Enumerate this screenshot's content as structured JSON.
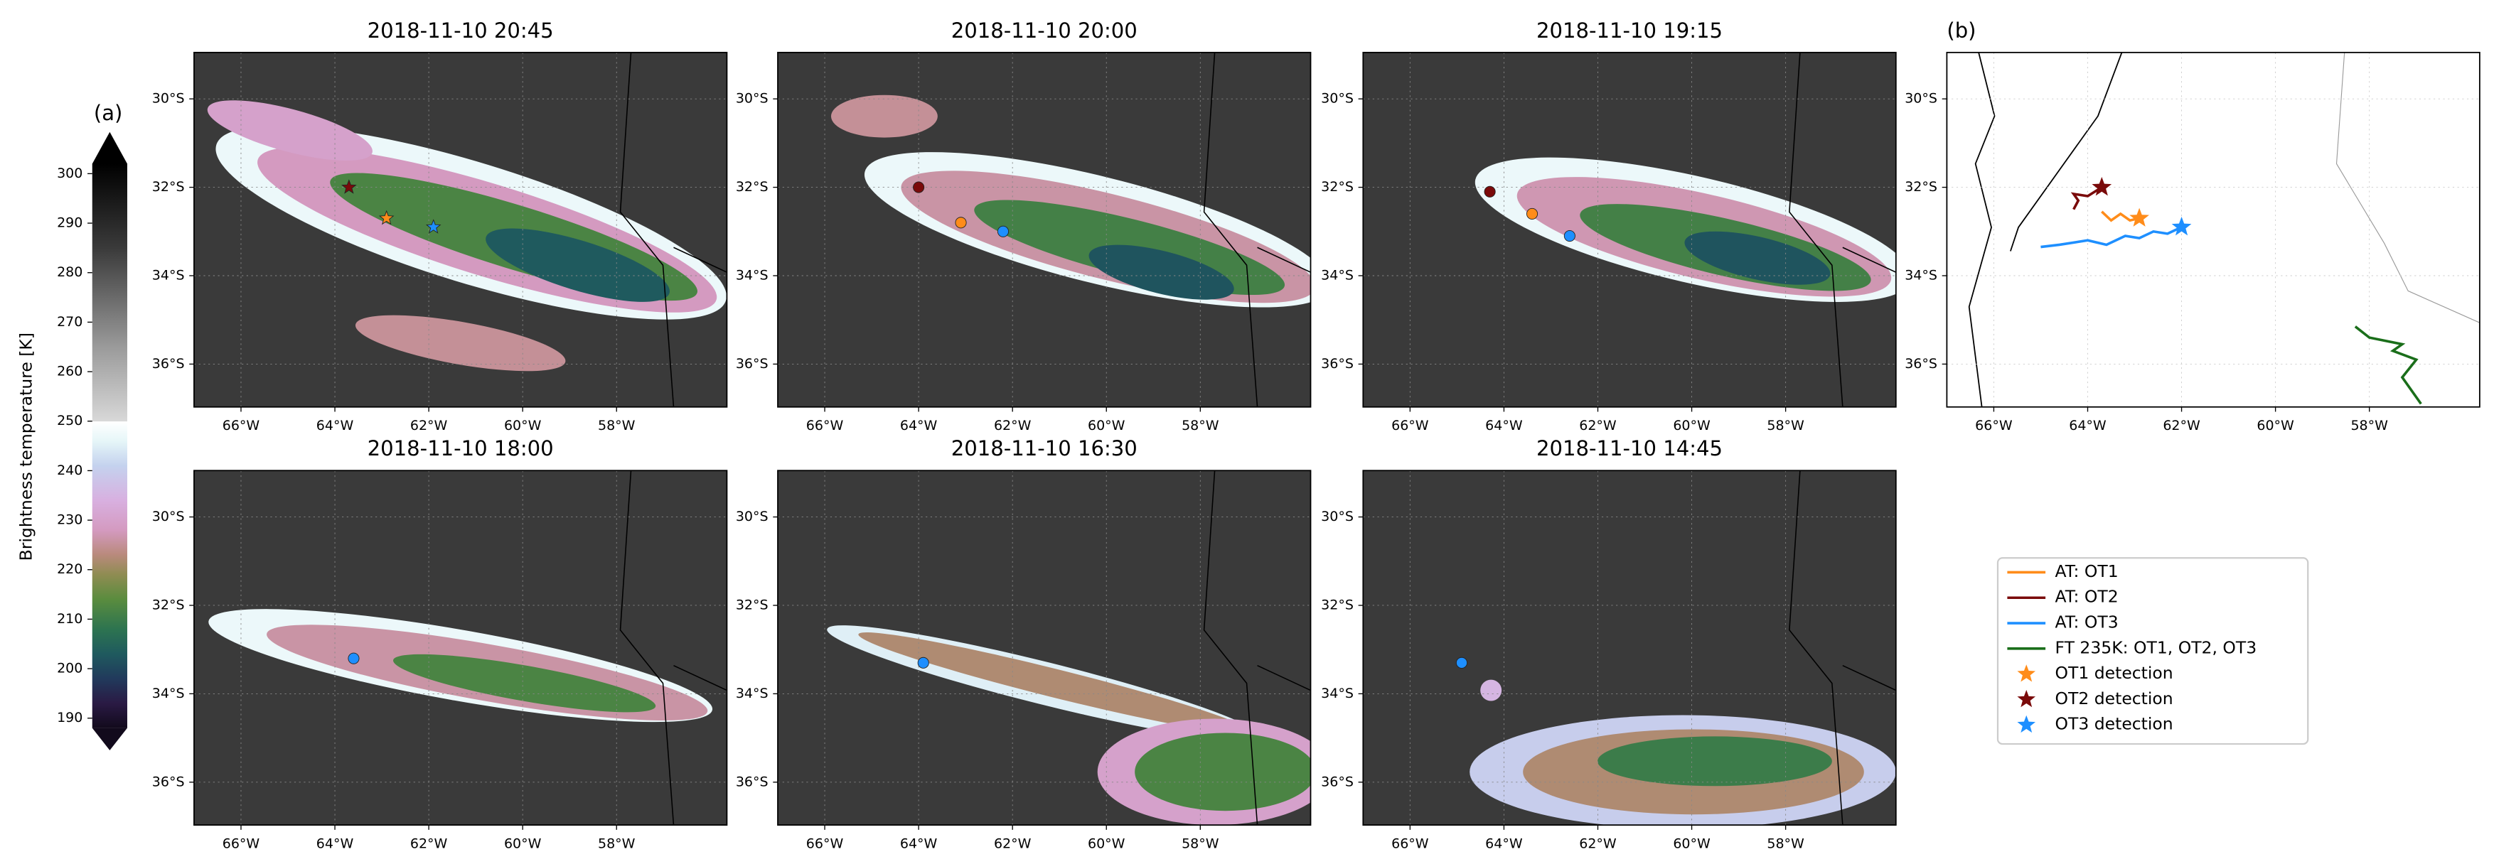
{
  "colorbar": {
    "label": "Brightness temperature [K]",
    "panel_label": "(a)",
    "lim": [
      188,
      302
    ],
    "ticks": [
      190,
      200,
      210,
      220,
      230,
      240,
      250,
      260,
      270,
      280,
      290,
      300
    ],
    "colormap": [
      [
        188,
        "#120a1c"
      ],
      [
        193,
        "#2a1a44"
      ],
      [
        198,
        "#213a5c"
      ],
      [
        203,
        "#1f5a5e"
      ],
      [
        208,
        "#2d7450"
      ],
      [
        214,
        "#5a8c3e"
      ],
      [
        219,
        "#8f8c52"
      ],
      [
        223,
        "#b98a7c"
      ],
      [
        228,
        "#d49ac0"
      ],
      [
        234,
        "#d8b0e0"
      ],
      [
        241,
        "#c4d2ee"
      ],
      [
        246,
        "#e6f6f8"
      ],
      [
        249.9,
        "#ffffff"
      ],
      [
        250,
        "#d8d8d8"
      ],
      [
        265,
        "#9a9a9a"
      ],
      [
        285,
        "#3a3a3a"
      ],
      [
        302,
        "#000000"
      ]
    ]
  },
  "map_axes": {
    "xlim": [
      -67.0,
      -55.65
    ],
    "ylim": [
      -36.97,
      -28.95
    ],
    "xticks": [
      {
        "value": -66,
        "label": "66°W"
      },
      {
        "value": -64,
        "label": "64°W"
      },
      {
        "value": -62,
        "label": "62°W"
      },
      {
        "value": -60,
        "label": "60°W"
      },
      {
        "value": -58,
        "label": "58°W"
      }
    ],
    "yticks": [
      {
        "value": -30,
        "label": "30°S"
      },
      {
        "value": -32,
        "label": "32°S"
      },
      {
        "value": -34,
        "label": "34°S"
      },
      {
        "value": -36,
        "label": "36°S"
      }
    ],
    "grid": true
  },
  "panels": [
    {
      "title": "2018-11-10 20:45",
      "marker": "star",
      "ot1": [
        -62.9,
        -32.7
      ],
      "ot2": [
        -63.7,
        -32.0
      ],
      "ot3": [
        -61.9,
        -32.9
      ]
    },
    {
      "title": "2018-11-10 20:00",
      "marker": "circle",
      "ot1": [
        -63.1,
        -32.8
      ],
      "ot2": [
        -64.0,
        -32.0
      ],
      "ot3": [
        -62.2,
        -33.0
      ]
    },
    {
      "title": "2018-11-10 19:15",
      "marker": "circle",
      "ot1": [
        -63.4,
        -32.6
      ],
      "ot2": [
        -64.3,
        -32.1
      ],
      "ot3": [
        -62.6,
        -33.1
      ]
    },
    {
      "title": "2018-11-10 18:00",
      "marker": "circle",
      "ot3": [
        -63.6,
        -33.2
      ]
    },
    {
      "title": "2018-11-10 16:30",
      "marker": "circle",
      "ot3": [
        -63.9,
        -33.3
      ]
    },
    {
      "title": "2018-11-10 14:45",
      "marker": "circle",
      "ot3": [
        -64.9,
        -33.3
      ]
    }
  ],
  "track_panel": {
    "label": "(b)",
    "series": [
      {
        "name": "AT: OT1",
        "color": "#ff8c1a",
        "lon": [
          -63.7,
          -63.5,
          -63.3,
          -63.1,
          -62.9
        ],
        "lat": [
          -32.55,
          -32.75,
          -32.6,
          -32.75,
          -32.7
        ]
      },
      {
        "name": "AT: OT2",
        "color": "#7a0a0a",
        "lon": [
          -64.3,
          -64.2,
          -64.3,
          -64.0,
          -63.7
        ],
        "lat": [
          -32.5,
          -32.3,
          -32.15,
          -32.2,
          -32.0
        ]
      },
      {
        "name": "AT: OT3",
        "color": "#1e8fff",
        "lon": [
          -65.0,
          -64.6,
          -64.0,
          -63.6,
          -63.2,
          -62.9,
          -62.6,
          -62.3,
          -62.0
        ],
        "lat": [
          -33.35,
          -33.3,
          -33.2,
          -33.3,
          -33.1,
          -33.15,
          -33.0,
          -33.05,
          -32.9
        ]
      },
      {
        "name": "FT 235K: OT1, OT2, OT3",
        "color": "#1a6e1a",
        "lon": [
          -58.3,
          -58.0,
          -57.3,
          -57.5,
          -57.0,
          -57.3,
          -56.9
        ],
        "lat": [
          -35.15,
          -35.4,
          -35.55,
          -35.7,
          -35.9,
          -36.3,
          -36.9
        ]
      }
    ],
    "detections": [
      {
        "name": "OT1 detection",
        "color": "#ff8c1a",
        "lon": -62.9,
        "lat": -32.7
      },
      {
        "name": "OT2 detection",
        "color": "#7a0a0a",
        "lon": -63.7,
        "lat": -32.0
      },
      {
        "name": "OT3 detection",
        "color": "#1e8fff",
        "lon": -62.0,
        "lat": -32.9
      }
    ]
  }
}
